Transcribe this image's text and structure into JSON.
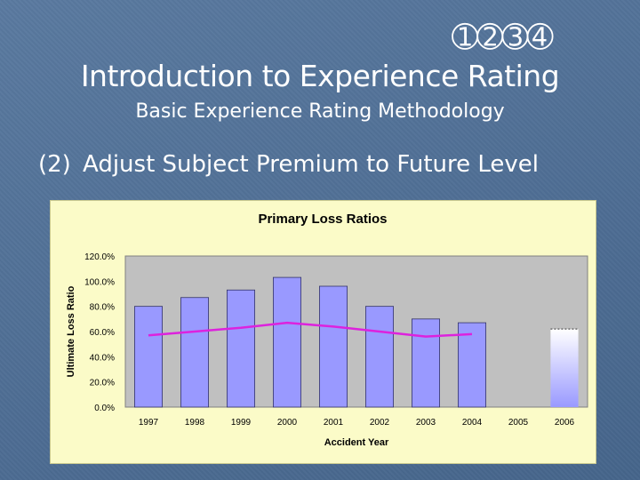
{
  "slide": {
    "ornament": "➀➁➂➃",
    "title": "Introduction to Experience Rating",
    "subtitle": "Basic Experience Rating Methodology",
    "bullet_number": "(2)",
    "bullet_text": "Adjust Subject Premium to Future Level"
  },
  "colors": {
    "background": "#4d6d93",
    "panel": "#fbfbc8",
    "plot_area": "#c0c0c0",
    "bar": "#9999ff",
    "projected_bar_top": "#e8e8ff",
    "trend_line": "#dd22dd"
  },
  "chart_data": {
    "type": "bar",
    "title": "Primary Loss Ratios",
    "xlabel": "Accident Year",
    "ylabel": "Ultimate Loss Ratio",
    "ylim": [
      0,
      120
    ],
    "y_ticks": [
      "0.0%",
      "20.0%",
      "40.0%",
      "60.0%",
      "80.0%",
      "100.0%",
      "120.0%"
    ],
    "categories": [
      "1997",
      "1998",
      "1999",
      "2000",
      "2001",
      "2002",
      "2003",
      "2004",
      "2005",
      "2006"
    ],
    "series": [
      {
        "values": [
          80,
          87,
          93,
          103,
          96,
          80,
          70,
          67,
          null,
          62
        ]
      }
    ],
    "projected_category": "2006",
    "trend_line": {
      "x": [
        "1997",
        "1998",
        "1999",
        "2000",
        "2001",
        "2002",
        "2003",
        "2004"
      ],
      "values": [
        57,
        60,
        63,
        67,
        64,
        60,
        56,
        58
      ]
    },
    "grid": false,
    "legend": "none"
  }
}
